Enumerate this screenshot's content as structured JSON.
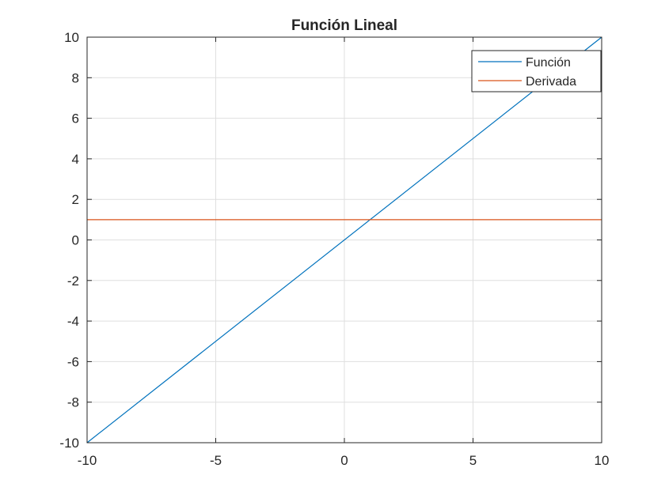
{
  "chart_data": {
    "type": "line",
    "title": "Función Lineal",
    "xlabel": "",
    "ylabel": "",
    "xlim": [
      -10,
      10
    ],
    "ylim": [
      -10,
      10
    ],
    "xticks": [
      -10,
      -5,
      0,
      5,
      10
    ],
    "yticks": [
      -10,
      -8,
      -6,
      -4,
      -2,
      0,
      2,
      4,
      6,
      8,
      10
    ],
    "grid": true,
    "legend_location": "top-right",
    "series": [
      {
        "name": "Función",
        "color": "#0072bd",
        "x": [
          -10,
          10
        ],
        "y": [
          -10,
          10
        ]
      },
      {
        "name": "Derivada",
        "color": "#d95319",
        "x": [
          -10,
          10
        ],
        "y": [
          1,
          1
        ]
      }
    ]
  }
}
